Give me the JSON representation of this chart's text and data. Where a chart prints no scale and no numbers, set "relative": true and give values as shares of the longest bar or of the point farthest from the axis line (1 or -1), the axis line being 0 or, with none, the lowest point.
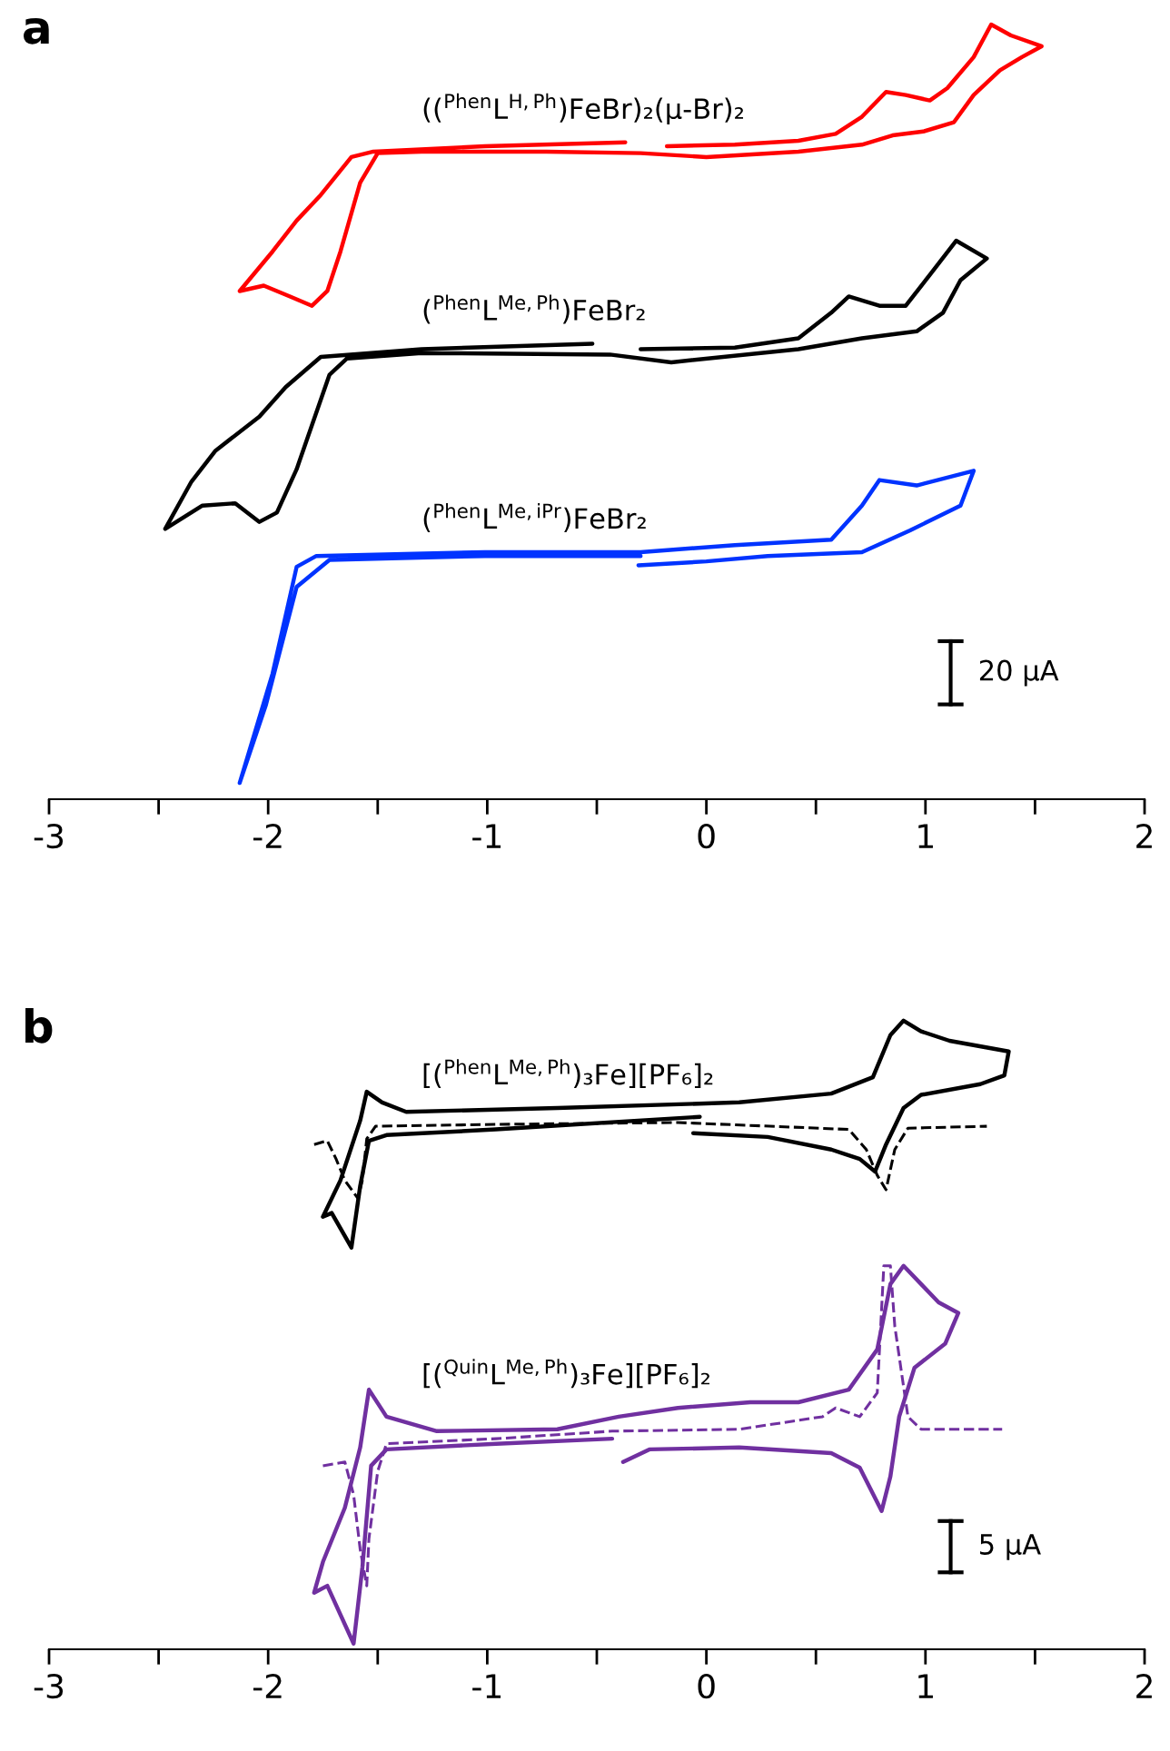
{
  "chart_data": [
    {
      "type": "line",
      "title": "a",
      "relative": true,
      "tick_labels": "x",
      "xlim": [
        -3,
        2
      ],
      "xticks": [
        -3,
        {
          "value": -2.5,
          "label": null
        },
        -2,
        {
          "value": -1.5,
          "label": null
        },
        -1,
        {
          "value": -0.5,
          "label": null
        },
        0,
        {
          "value": 0.5,
          "label": null
        },
        1,
        {
          "value": 1.5,
          "label": null
        },
        2
      ],
      "annotations": [
        "20 µA"
      ],
      "series": [
        {
          "name": "(($^{Phen}$L$^{H,Ph}$)FeBr)₂(µ-Br)₂",
          "color": "#ff0000",
          "line_style": "solid",
          "x": [
            -0.18,
            0.13,
            0.42,
            0.59,
            0.71,
            0.82,
            0.91,
            1.02,
            1.1,
            1.22,
            1.3,
            1.39,
            1.53,
            1.44,
            1.34,
            1.22,
            1.13,
            0.99,
            0.85,
            0.71,
            0.42,
            0.0,
            -0.3,
            -0.73,
            -1.3,
            -1.5,
            -1.58,
            -1.67,
            -1.73,
            -1.8,
            -1.9,
            -2.02,
            -2.13,
            -1.98,
            -1.87,
            -1.76,
            -1.62,
            -1.52,
            -1.01,
            -0.37
          ],
          "values": [
            0.843,
            0.845,
            0.85,
            0.859,
            0.881,
            0.913,
            0.909,
            0.902,
            0.918,
            0.958,
            1.0,
            0.986,
            0.972,
            0.958,
            0.941,
            0.909,
            0.874,
            0.862,
            0.857,
            0.845,
            0.836,
            0.829,
            0.834,
            0.836,
            0.836,
            0.834,
            0.796,
            0.707,
            0.656,
            0.637,
            0.649,
            0.663,
            0.656,
            0.707,
            0.747,
            0.78,
            0.829,
            0.836,
            0.843,
            0.848
          ]
        },
        {
          "name": "($^{Phen}$L$^{Me,Ph}$)FeBr₂",
          "color": "#000000",
          "line_style": "solid",
          "x": [
            -0.3,
            0.13,
            0.42,
            0.57,
            0.65,
            0.79,
            0.91,
            1.02,
            1.14,
            1.28,
            1.16,
            1.08,
            0.96,
            0.71,
            0.42,
            -0.16,
            -0.44,
            -1.3,
            -1.64,
            -1.72,
            -1.87,
            -1.96,
            -2.04,
            -2.15,
            -2.3,
            -2.47,
            -2.35,
            -2.24,
            -2.04,
            -1.92,
            -1.76,
            -1.3,
            -0.52
          ],
          "values": [
            0.581,
            0.583,
            0.595,
            0.628,
            0.649,
            0.637,
            0.637,
            0.677,
            0.721,
            0.698,
            0.67,
            0.628,
            0.604,
            0.595,
            0.581,
            0.564,
            0.574,
            0.576,
            0.569,
            0.548,
            0.426,
            0.37,
            0.358,
            0.382,
            0.379,
            0.349,
            0.41,
            0.45,
            0.494,
            0.532,
            0.571,
            0.581,
            0.588
          ]
        },
        {
          "name": "($^{Phen}$L$^{Me,iPr}$)FeBr₂",
          "color": "#0033ff",
          "line_style": "solid",
          "x": [
            -0.3,
            -1.01,
            -1.72,
            -1.87,
            -2.01,
            -2.13,
            -1.98,
            -1.87,
            -1.78,
            -1.01,
            -0.3,
            0.13,
            0.57,
            0.71,
            0.79,
            0.96,
            1.22,
            1.16,
            0.93,
            0.71,
            0.28,
            0.0,
            -0.31
          ],
          "values": [
            0.314,
            0.314,
            0.309,
            0.274,
            0.122,
            0.021,
            0.162,
            0.3,
            0.314,
            0.319,
            0.319,
            0.328,
            0.335,
            0.379,
            0.412,
            0.405,
            0.424,
            0.379,
            0.347,
            0.319,
            0.314,
            0.307,
            0.302
          ]
        }
      ]
    },
    {
      "type": "line",
      "title": "b",
      "relative": true,
      "tick_labels": "x",
      "xlim": [
        -3,
        2
      ],
      "xticks": [
        -3,
        {
          "value": -2.5,
          "label": null
        },
        -2,
        {
          "value": -1.5,
          "label": null
        },
        -1,
        {
          "value": -0.5,
          "label": null
        },
        0,
        {
          "value": 0.5,
          "label": null
        },
        1,
        {
          "value": 1.5,
          "label": null
        },
        2
      ],
      "annotations": [
        "5 µA"
      ],
      "series": [
        {
          "name": "[($^{Phen}$L$^{Me,Ph}$)₃Fe][PF₆]₂",
          "color": "#000000",
          "line_style": "solid",
          "x": [
            -0.06,
            0.28,
            0.57,
            0.7,
            0.77,
            0.82,
            0.9,
            0.98,
            1.25,
            1.36,
            1.38,
            1.11,
            0.98,
            0.9,
            0.84,
            0.76,
            0.57,
            0.15,
            -0.68,
            -1.37,
            -1.48,
            -1.55,
            -1.58,
            -1.67,
            -1.75,
            -1.71,
            -1.62,
            -1.58,
            -1.54,
            -1.46,
            -0.96,
            -0.03
          ],
          "values": [
            0.821,
            0.815,
            0.795,
            0.78,
            0.76,
            0.803,
            0.861,
            0.882,
            0.899,
            0.913,
            0.951,
            0.968,
            0.983,
            1.0,
            0.977,
            0.91,
            0.884,
            0.87,
            0.861,
            0.855,
            0.87,
            0.887,
            0.841,
            0.746,
            0.688,
            0.694,
            0.639,
            0.737,
            0.809,
            0.818,
            0.827,
            0.847
          ]
        },
        {
          "color": "#000000",
          "line_style": "dashed",
          "x": [
            -1.79,
            -1.73,
            -1.69,
            -1.65,
            -1.59,
            -1.57,
            -1.55,
            -1.51,
            -0.96,
            -0.13,
            0.65,
            0.73,
            0.78,
            0.82,
            0.86,
            0.92,
            1.28
          ],
          "values": [
            0.803,
            0.809,
            0.78,
            0.746,
            0.717,
            0.746,
            0.812,
            0.832,
            0.835,
            0.838,
            0.827,
            0.795,
            0.754,
            0.731,
            0.795,
            0.829,
            0.832
          ]
        },
        {
          "name": "[($^{Quin}$L$^{Me,Ph}$)₃Fe][PF₆]₂",
          "color": "#7030a0",
          "line_style": "solid",
          "x": [
            -0.38,
            -0.26,
            0.15,
            0.57,
            0.7,
            0.8,
            0.84,
            0.88,
            0.95,
            1.09,
            1.15,
            1.06,
            0.98,
            0.9,
            0.84,
            0.78,
            0.65,
            0.42,
            0.2,
            -0.13,
            -0.4,
            -0.68,
            -1.23,
            -1.46,
            -1.54,
            -1.58,
            -1.65,
            -1.75,
            -1.79,
            -1.73,
            -1.61,
            -1.57,
            -1.53,
            -1.46,
            -0.96,
            -0.43
          ],
          "values": [
            0.298,
            0.318,
            0.321,
            0.312,
            0.289,
            0.22,
            0.275,
            0.37,
            0.448,
            0.486,
            0.535,
            0.552,
            0.581,
            0.61,
            0.581,
            0.477,
            0.413,
            0.393,
            0.393,
            0.384,
            0.37,
            0.35,
            0.347,
            0.37,
            0.413,
            0.321,
            0.225,
            0.139,
            0.09,
            0.101,
            0.009,
            0.13,
            0.292,
            0.318,
            0.327,
            0.335
          ]
        },
        {
          "color": "#7030a0",
          "line_style": "dashed",
          "x": [
            -1.75,
            -1.65,
            -1.61,
            -1.58,
            -1.55,
            -1.54,
            -1.5,
            -1.46,
            -0.96,
            -0.43,
            0.15,
            0.53,
            0.59,
            0.7,
            0.78,
            0.81,
            0.84,
            0.86,
            0.92,
            0.98,
            1.35
          ],
          "values": [
            0.292,
            0.298,
            0.246,
            0.159,
            0.101,
            0.176,
            0.283,
            0.327,
            0.335,
            0.347,
            0.35,
            0.37,
            0.384,
            0.37,
            0.408,
            0.61,
            0.61,
            0.514,
            0.37,
            0.35,
            0.35
          ]
        }
      ]
    }
  ]
}
